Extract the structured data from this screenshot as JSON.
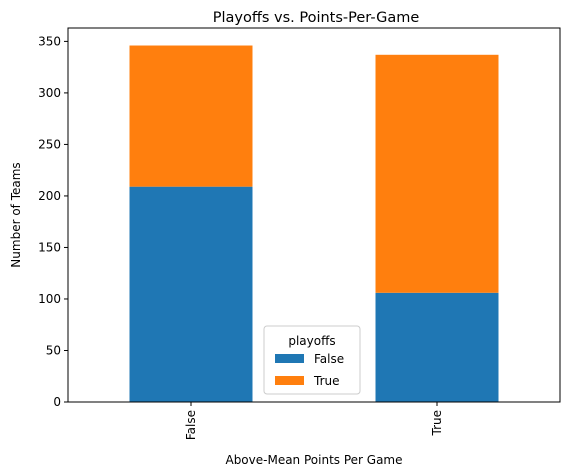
{
  "chart_data": {
    "type": "bar",
    "stacked": true,
    "title": "Playoffs vs. Points-Per-Game",
    "xlabel": "Above-Mean Points Per Game",
    "ylabel": "Number of Teams",
    "categories": [
      "False",
      "True"
    ],
    "series": [
      {
        "name": "False",
        "values": [
          209,
          106
        ],
        "color": "#1f77b4"
      },
      {
        "name": "True",
        "values": [
          137,
          231
        ],
        "color": "#ff7f0e"
      }
    ],
    "ylim": [
      0,
      363
    ],
    "yticks": [
      0,
      50,
      100,
      150,
      200,
      250,
      300,
      350
    ],
    "legend": {
      "title": "playoffs",
      "position": "lower-center"
    },
    "grid": false
  }
}
